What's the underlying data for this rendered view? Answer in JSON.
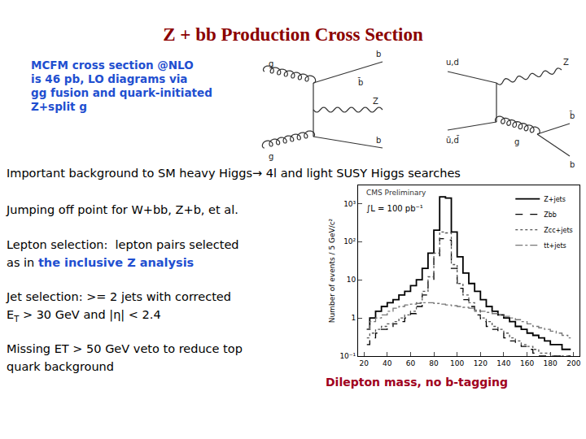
{
  "title": "Z + bb Production Cross Section",
  "intro": [
    "MCFM cross section @NLO",
    "is 46 pb, LO diagrams via",
    "gg fusion and quark-initiated",
    "Z+split g"
  ],
  "diagrams": [
    {
      "labels": {
        "in_top": "g",
        "out_top": "b",
        "mid_top": "b̄",
        "boson": "Z",
        "in_bottom": "g",
        "out_bottom": "b"
      }
    },
    {
      "labels": {
        "in_top": "u,d",
        "boson": "Z",
        "in_bottom": "ū,d̄",
        "gluon": "g",
        "out_top": "b̄",
        "out_bottom": "b"
      }
    }
  ],
  "paragraphs": [
    [
      [
        {
          "text": "Important background to SM heavy Higgs→ 4l and light SUSY Higgs searches"
        }
      ]
    ],
    [
      [
        {
          "text": "Jumping off point for W+bb, Z+b, et al."
        }
      ]
    ],
    [
      [
        {
          "text": "Lepton selection:  lepton pairs selected"
        }
      ],
      [
        {
          "text": "as in "
        },
        {
          "text": "the inclusive Z analysis",
          "style": "bold"
        }
      ]
    ],
    [
      [
        {
          "text": "Jet selection: >= 2 jets with corrected"
        }
      ],
      [
        {
          "text": "E"
        },
        {
          "text": "T",
          "style": "sub"
        },
        {
          "text": " > 30 GeV and |η| < 2.4"
        }
      ]
    ],
    [
      [
        {
          "text": "Missing ET > 50 GeV veto to reduce top"
        }
      ],
      [
        {
          "text": "quark background"
        }
      ]
    ]
  ],
  "caption": "Dilepton mass, no b-tagging",
  "chart_data": {
    "type": "histogram",
    "y_label": "Number of events / 5 GeV/c²",
    "annotations": [
      "CMS Preliminary",
      "∫L = 100 pb⁻¹"
    ],
    "log": "y",
    "legend": "top right",
    "bins": [
      20,
      25,
      30,
      35,
      40,
      45,
      50,
      55,
      60,
      65,
      70,
      75,
      80,
      85,
      90,
      95,
      100,
      105,
      110,
      115,
      120,
      125,
      130,
      135,
      140,
      145,
      150,
      155,
      160,
      165,
      170,
      175,
      180,
      185,
      190,
      195,
      200
    ],
    "series": [
      {
        "name": "Z+jets",
        "color": "#000000",
        "line_style": "solid",
        "values": [
          0.5,
          1,
          1.5,
          2,
          2.5,
          3,
          4,
          5,
          7,
          10,
          20,
          50,
          200,
          1500,
          1400,
          180,
          40,
          15,
          8,
          5,
          3,
          2,
          1.5,
          1.2,
          1,
          0.8,
          0.6,
          0.5,
          0.4,
          0.35,
          0.3,
          0.25,
          0.2,
          0.2,
          0.15,
          0.15
        ]
      },
      {
        "name": "Zbb",
        "color": "#000000",
        "line_style": "dash",
        "values": [
          0.2,
          0.3,
          0.4,
          0.5,
          0.6,
          0.7,
          0.8,
          1,
          1.3,
          2,
          4,
          10,
          40,
          120,
          110,
          20,
          6,
          3,
          2,
          1.2,
          0.8,
          0.6,
          0.5,
          0.4,
          0.3,
          0.25,
          0.2,
          0.18,
          0.15,
          0.12,
          0.1,
          0.1,
          0.1,
          0.1,
          0.1,
          0.1
        ]
      },
      {
        "name": "Zcc+jets",
        "color": "#555555",
        "line_style": "dot",
        "values": [
          0.3,
          0.4,
          0.5,
          0.6,
          0.7,
          0.8,
          1,
          1.2,
          1.5,
          2.5,
          5,
          12,
          50,
          180,
          170,
          25,
          8,
          4,
          2.5,
          1.5,
          1,
          0.8,
          0.6,
          0.5,
          0.4,
          0.3,
          0.25,
          0.2,
          0.18,
          0.15,
          0.12,
          0.12,
          0.1,
          0.1,
          0.1,
          0.1
        ]
      },
      {
        "name": "tt+jets",
        "color": "#777777",
        "line_style": "dashdot",
        "values": [
          0.5,
          0.8,
          1,
          1.2,
          1.5,
          1.8,
          2,
          2.2,
          2.3,
          2.4,
          2.5,
          2.5,
          2.4,
          2.3,
          2.2,
          2.1,
          2,
          1.9,
          1.8,
          1.6,
          1.5,
          1.4,
          1.3,
          1.2,
          1.1,
          1,
          0.9,
          0.8,
          0.7,
          0.6,
          0.55,
          0.5,
          0.45,
          0.4,
          0.35,
          0.3
        ]
      }
    ],
    "xlim": [
      15,
      205
    ],
    "xticks": [
      20,
      40,
      60,
      80,
      100,
      120,
      140,
      160,
      180,
      200
    ],
    "ylim": [
      0.1,
      3000
    ],
    "yticks": [
      {
        "value": 0.1,
        "label": "10⁻¹"
      },
      1,
      10,
      {
        "value": 100,
        "label": "10²"
      },
      {
        "value": 1000,
        "label": "10³"
      }
    ]
  }
}
